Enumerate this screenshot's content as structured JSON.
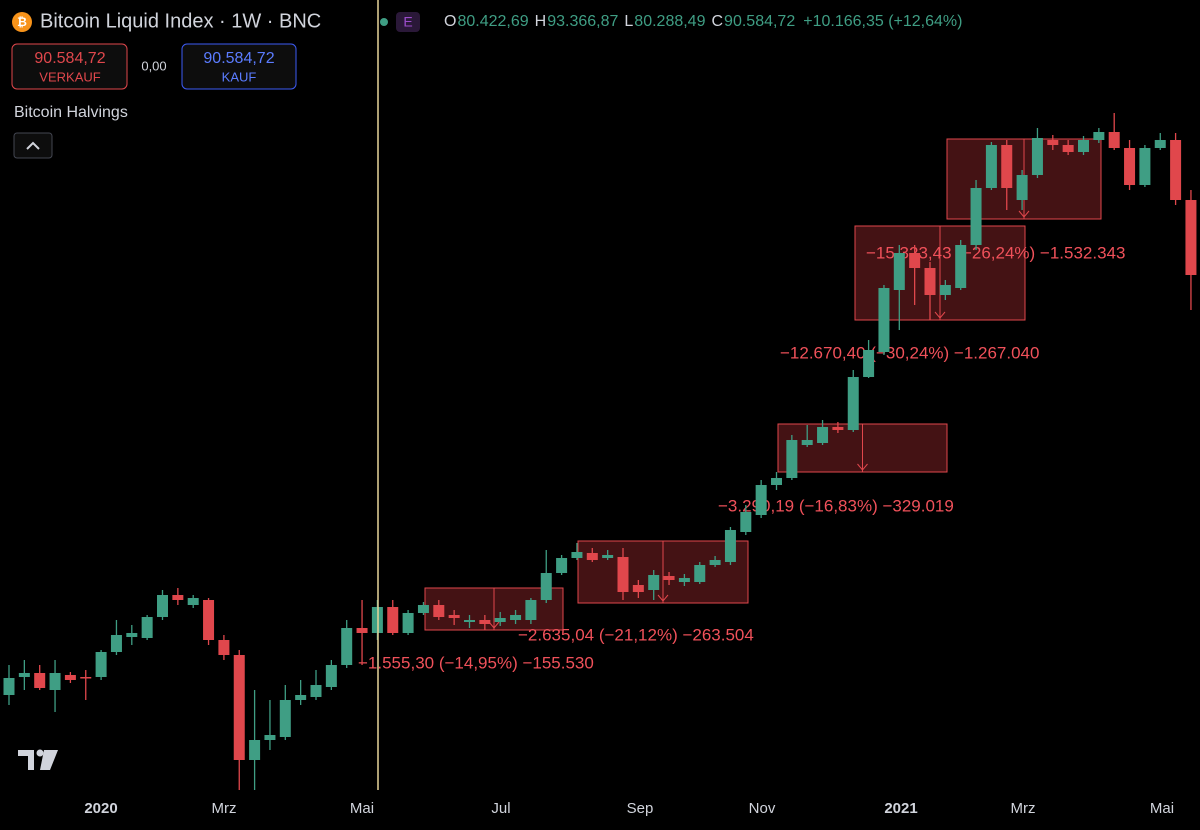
{
  "header": {
    "title": "Bitcoin Liquid Index · 1W · BNC",
    "badge": "E",
    "ohlc": [
      {
        "label": "O",
        "value": "80.422,69"
      },
      {
        "label": "H",
        "value": "93.366,87"
      },
      {
        "label": "L",
        "value": "80.288,49"
      },
      {
        "label": "C",
        "value": "90.584,72"
      }
    ],
    "change": "+10.166,35 (+12,64%)"
  },
  "trading": {
    "sell_price": "90.584,72",
    "sell_label": "VERKAUF",
    "spread": "0,00",
    "buy_price": "90.584,72",
    "buy_label": "KAUF"
  },
  "indicator": {
    "label": "Bitcoin Halvings"
  },
  "chart": {
    "type": "candlestick",
    "ylim": [
      0,
      830
    ],
    "up_color": "#3f9e84",
    "down_color": "#e0474c",
    "candles": [
      [
        135,
        165,
        125,
        152
      ],
      [
        153,
        170,
        140,
        157
      ],
      [
        157,
        165,
        140,
        142
      ],
      [
        140,
        170,
        118,
        157
      ],
      [
        155,
        158,
        147,
        150
      ],
      [
        153,
        160,
        130,
        152
      ],
      [
        153,
        180,
        150,
        178
      ],
      [
        178,
        210,
        175,
        195
      ],
      [
        193,
        205,
        185,
        197
      ],
      [
        192,
        215,
        190,
        213
      ],
      [
        213,
        240,
        210,
        235
      ],
      [
        235,
        242,
        225,
        230
      ],
      [
        225,
        235,
        222,
        232
      ],
      [
        230,
        232,
        185,
        190
      ],
      [
        190,
        195,
        170,
        175
      ],
      [
        175,
        180,
        40,
        70
      ],
      [
        70,
        140,
        40,
        90
      ],
      [
        90,
        130,
        80,
        95
      ],
      [
        93,
        145,
        90,
        130
      ],
      [
        130,
        150,
        125,
        135
      ],
      [
        133,
        160,
        130,
        145
      ],
      [
        143,
        170,
        140,
        165
      ],
      [
        165,
        210,
        162,
        202
      ],
      [
        202,
        230,
        165,
        197
      ],
      [
        197,
        230,
        190,
        223
      ],
      [
        223,
        230,
        195,
        197
      ],
      [
        197,
        220,
        195,
        217
      ],
      [
        217,
        228,
        215,
        225
      ],
      [
        225,
        230,
        210,
        213
      ],
      [
        215,
        220,
        205,
        212
      ],
      [
        208,
        215,
        202,
        210
      ],
      [
        210,
        215,
        200,
        206
      ],
      [
        208,
        218,
        204,
        212
      ],
      [
        210,
        220,
        206,
        215
      ],
      [
        210,
        232,
        206,
        230
      ],
      [
        230,
        280,
        227,
        257
      ],
      [
        257,
        275,
        255,
        272
      ],
      [
        272,
        287,
        270,
        278
      ],
      [
        277,
        282,
        268,
        270
      ],
      [
        272,
        280,
        270,
        275
      ],
      [
        273,
        282,
        230,
        238
      ],
      [
        245,
        250,
        232,
        238
      ],
      [
        240,
        260,
        230,
        255
      ],
      [
        254,
        258,
        245,
        250
      ],
      [
        248,
        256,
        244,
        252
      ],
      [
        248,
        268,
        246,
        265
      ],
      [
        265,
        274,
        263,
        270
      ],
      [
        268,
        303,
        265,
        300
      ],
      [
        298,
        325,
        295,
        318
      ],
      [
        315,
        350,
        312,
        345
      ],
      [
        345,
        358,
        340,
        352
      ],
      [
        352,
        395,
        350,
        390
      ],
      [
        385,
        405,
        383,
        390
      ],
      [
        387,
        410,
        385,
        403
      ],
      [
        403,
        408,
        397,
        400
      ],
      [
        400,
        460,
        398,
        453
      ],
      [
        453,
        490,
        452,
        480
      ],
      [
        478,
        545,
        475,
        542
      ],
      [
        540,
        585,
        500,
        577
      ],
      [
        577,
        585,
        525,
        562
      ],
      [
        562,
        568,
        510,
        535
      ],
      [
        535,
        550,
        530,
        545
      ],
      [
        542,
        590,
        540,
        585
      ],
      [
        585,
        650,
        580,
        642
      ],
      [
        642,
        688,
        640,
        685
      ],
      [
        685,
        690,
        620,
        642
      ],
      [
        630,
        660,
        620,
        655
      ],
      [
        655,
        702,
        652,
        692
      ],
      [
        690,
        695,
        680,
        685
      ],
      [
        685,
        690,
        675,
        678
      ],
      [
        678,
        694,
        675,
        690
      ],
      [
        690,
        702,
        687,
        698
      ],
      [
        698,
        717,
        680,
        682
      ],
      [
        682,
        690,
        640,
        645
      ],
      [
        645,
        685,
        643,
        682
      ],
      [
        682,
        697,
        680,
        690
      ],
      [
        690,
        697,
        625,
        630
      ],
      [
        630,
        640,
        520,
        555
      ]
    ],
    "measurements": [
      {
        "label": "−1.555,30 (−14,95%) −155.530"
      },
      {
        "label": "−2.635,04 (−21,12%) −263.504"
      },
      {
        "label": "−3.290,19 (−16,83%) −329.019"
      },
      {
        "label": "−12.670,40 (−30,24%) −1.267.040"
      },
      {
        "label": "−15.323,43 (−26,24%) −1.532.343"
      }
    ],
    "x_labels": [
      "2020",
      "Mrz",
      "Mai",
      "Jul",
      "Sep",
      "Nov",
      "2021",
      "Mrz",
      "Mai"
    ]
  }
}
